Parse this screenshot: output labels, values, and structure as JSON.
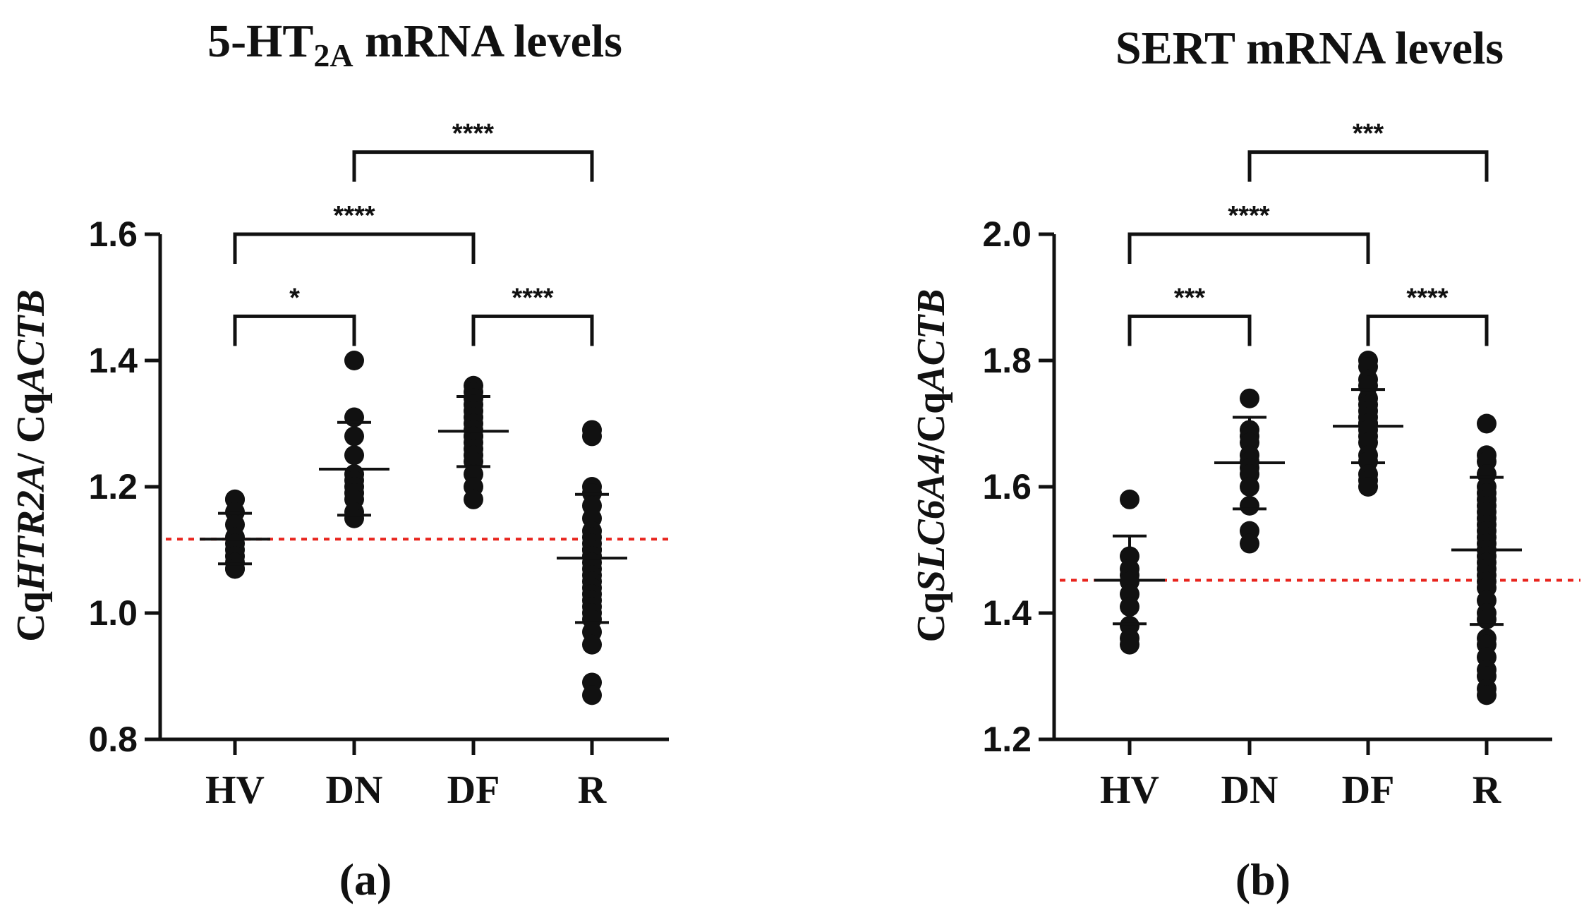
{
  "chart_data": [
    {
      "type": "scatter",
      "panel_label": "(a)",
      "title": {
        "prefix": "5-HT",
        "sub": "2A",
        "suffix": " mRNA levels"
      },
      "ylabel": {
        "prefix": "Cq",
        "gene": "HTR2A",
        "suffix": "/ Cq",
        "ref_gene": "ACTB"
      },
      "xlabel": "",
      "ylim": [
        0.8,
        1.6
      ],
      "yticks": [
        0.8,
        1.0,
        1.2,
        1.4,
        1.6
      ],
      "ytick_labels": [
        "0.8",
        "1.0",
        "1.2",
        "1.4",
        "1.6"
      ],
      "categories": [
        "HV",
        "DN",
        "DF",
        "R"
      ],
      "reference_line": 1.117,
      "groups": [
        {
          "name": "HV",
          "mean": 1.117,
          "sd_low": 1.078,
          "sd_high": 1.158,
          "points": [
            1.18,
            1.18,
            1.16,
            1.14,
            1.12,
            1.11,
            1.1,
            1.09,
            1.08,
            1.07,
            1.07
          ]
        },
        {
          "name": "DN",
          "mean": 1.228,
          "sd_low": 1.155,
          "sd_high": 1.302,
          "points": [
            1.4,
            1.31,
            1.28,
            1.25,
            1.22,
            1.21,
            1.2,
            1.19,
            1.18,
            1.16,
            1.15
          ]
        },
        {
          "name": "DF",
          "mean": 1.288,
          "sd_low": 1.232,
          "sd_high": 1.343,
          "points": [
            1.36,
            1.35,
            1.34,
            1.33,
            1.32,
            1.31,
            1.3,
            1.29,
            1.28,
            1.28,
            1.27,
            1.26,
            1.25,
            1.24,
            1.22,
            1.2,
            1.18
          ]
        },
        {
          "name": "R",
          "mean": 1.087,
          "sd_low": 0.985,
          "sd_high": 1.188,
          "points": [
            1.29,
            1.28,
            1.2,
            1.19,
            1.17,
            1.15,
            1.13,
            1.12,
            1.11,
            1.1,
            1.1,
            1.09,
            1.08,
            1.07,
            1.06,
            1.05,
            1.04,
            1.03,
            1.02,
            1.01,
            1.0,
            0.99,
            0.97,
            0.95,
            0.89,
            0.87
          ]
        }
      ],
      "comparisons": [
        {
          "from": "HV",
          "to": "DN",
          "y": 1.47,
          "label": "*"
        },
        {
          "from": "DF",
          "to": "R",
          "y": 1.47,
          "label": "****"
        },
        {
          "from": "HV",
          "to": "DF",
          "y": 1.6,
          "label": "****"
        },
        {
          "from": "DN",
          "to": "R",
          "y": 1.73,
          "label": "****"
        }
      ]
    },
    {
      "type": "scatter",
      "panel_label": "(b)",
      "title": {
        "prefix": "SERT mRNA levels",
        "sub": "",
        "suffix": ""
      },
      "ylabel": {
        "prefix": "Cq",
        "gene": "SLC6A4",
        "suffix": "/Cq",
        "ref_gene": "ACTB"
      },
      "xlabel": "",
      "ylim": [
        1.2,
        2.0
      ],
      "yticks": [
        1.2,
        1.4,
        1.6,
        1.8,
        2.0
      ],
      "ytick_labels": [
        "1.2",
        "1.4",
        "1.6",
        "1.8",
        "2.0"
      ],
      "categories": [
        "HV",
        "DN",
        "DF",
        "R"
      ],
      "reference_line": 1.452,
      "groups": [
        {
          "name": "HV",
          "mean": 1.452,
          "sd_low": 1.383,
          "sd_high": 1.522,
          "points": [
            1.58,
            1.49,
            1.47,
            1.46,
            1.45,
            1.43,
            1.41,
            1.38,
            1.36,
            1.35
          ]
        },
        {
          "name": "DN",
          "mean": 1.638,
          "sd_low": 1.565,
          "sd_high": 1.71,
          "points": [
            1.74,
            1.69,
            1.68,
            1.67,
            1.65,
            1.64,
            1.63,
            1.62,
            1.6,
            1.57,
            1.53,
            1.51
          ]
        },
        {
          "name": "DF",
          "mean": 1.696,
          "sd_low": 1.638,
          "sd_high": 1.754,
          "points": [
            1.8,
            1.79,
            1.77,
            1.76,
            1.74,
            1.73,
            1.72,
            1.71,
            1.7,
            1.7,
            1.69,
            1.68,
            1.67,
            1.65,
            1.64,
            1.62,
            1.61,
            1.6
          ]
        },
        {
          "name": "R",
          "mean": 1.5,
          "sd_low": 1.382,
          "sd_high": 1.615,
          "points": [
            1.7,
            1.65,
            1.64,
            1.62,
            1.6,
            1.59,
            1.58,
            1.57,
            1.56,
            1.55,
            1.54,
            1.53,
            1.52,
            1.51,
            1.5,
            1.49,
            1.48,
            1.47,
            1.46,
            1.45,
            1.44,
            1.42,
            1.4,
            1.39,
            1.36,
            1.35,
            1.33,
            1.31,
            1.3,
            1.28,
            1.27
          ]
        }
      ],
      "comparisons": [
        {
          "from": "HV",
          "to": "DN",
          "y": 1.87,
          "label": "***"
        },
        {
          "from": "DF",
          "to": "R",
          "y": 1.87,
          "label": "****"
        },
        {
          "from": "HV",
          "to": "DF",
          "y": 2.0,
          "label": "****"
        },
        {
          "from": "DN",
          "to": "R",
          "y": 2.13,
          "label": "***"
        }
      ]
    }
  ]
}
